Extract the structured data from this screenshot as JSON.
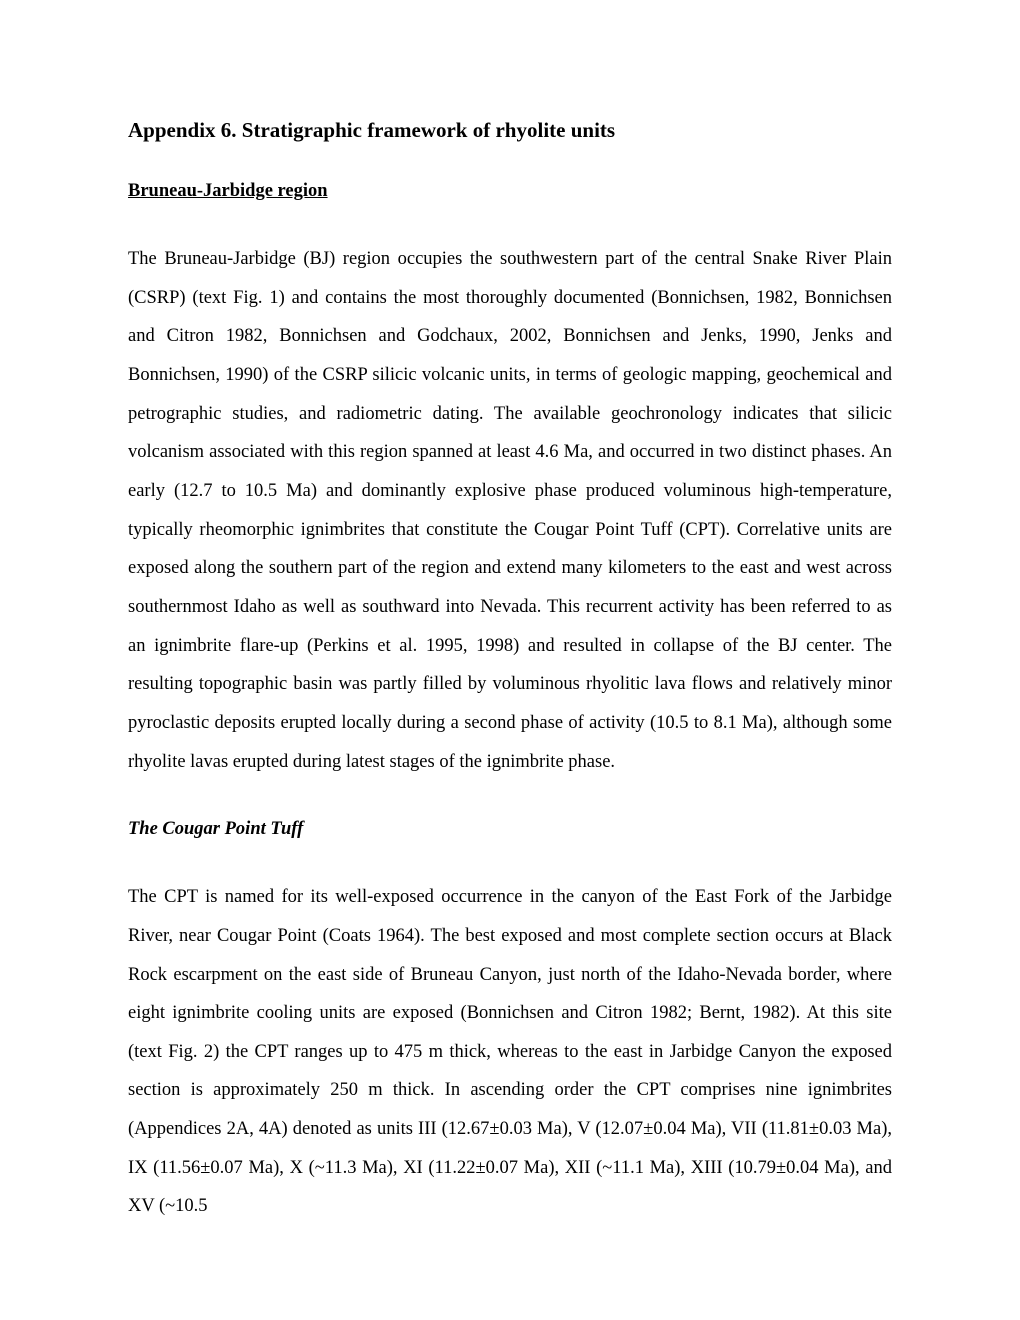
{
  "document": {
    "title": "Appendix 6. Stratigraphic framework of rhyolite units",
    "section_heading": "Bruneau-Jarbidge region",
    "paragraph1": "The Bruneau-Jarbidge (BJ) region occupies the southwestern part of the central Snake River Plain (CSRP) (text Fig. 1) and contains the most thoroughly documented (Bonnichsen, 1982, Bonnichsen and Citron 1982, Bonnichsen and Godchaux, 2002, Bonnichsen and Jenks, 1990, Jenks and Bonnichsen, 1990) of the CSRP silicic volcanic units, in terms of geologic mapping, geochemical and petrographic studies, and radiometric dating.  The available geochronology indicates that silicic volcanism associated with this region spanned at least 4.6 Ma, and occurred in two distinct phases. An early (12.7 to 10.5 Ma) and dominantly explosive phase produced voluminous high-temperature, typically rheomorphic ignimbrites that constitute the Cougar Point Tuff (CPT). Correlative units are exposed along the southern part of the region and extend many kilometers to the east and west across southernmost Idaho as well as southward into Nevada. This recurrent activity has been referred to as an ignimbrite flare-up (Perkins et al. 1995, 1998) and resulted in collapse of the BJ center. The resulting topographic basin was partly filled by voluminous rhyolitic lava flows and relatively minor pyroclastic deposits erupted locally during a second phase of activity (10.5 to 8.1 Ma), although some rhyolite lavas erupted during latest stages of the ignimbrite phase.",
    "subsection_heading": "The Cougar Point Tuff",
    "paragraph2": "The CPT is named for its well-exposed occurrence in the canyon of the East Fork of the Jarbidge River, near Cougar Point (Coats 1964). The best exposed and most complete section occurs at Black Rock escarpment on the east side of Bruneau Canyon, just north of the Idaho-Nevada border, where eight ignimbrite cooling units are exposed (Bonnichsen and Citron 1982; Bernt, 1982). At this site (text Fig. 2) the CPT ranges up to 475 m thick, whereas to the east in Jarbidge Canyon the exposed section is approximately 250 m thick. In ascending order the CPT comprises nine ignimbrites (Appendices 2A, 4A) denoted as units III (12.67±0.03 Ma), V (12.07±0.04 Ma), VII (11.81±0.03 Ma), IX (11.56±0.07 Ma), X (~11.3 Ma), XI (11.22±0.07 Ma), XII (~11.1 Ma), XIII (10.79±0.04 Ma), and XV (~10.5"
  },
  "styles": {
    "title_fontsize": 21,
    "body_fontsize": 18.5,
    "line_height": 2.09,
    "background_color": "#ffffff",
    "text_color": "#000000",
    "font_family": "Times New Roman"
  }
}
